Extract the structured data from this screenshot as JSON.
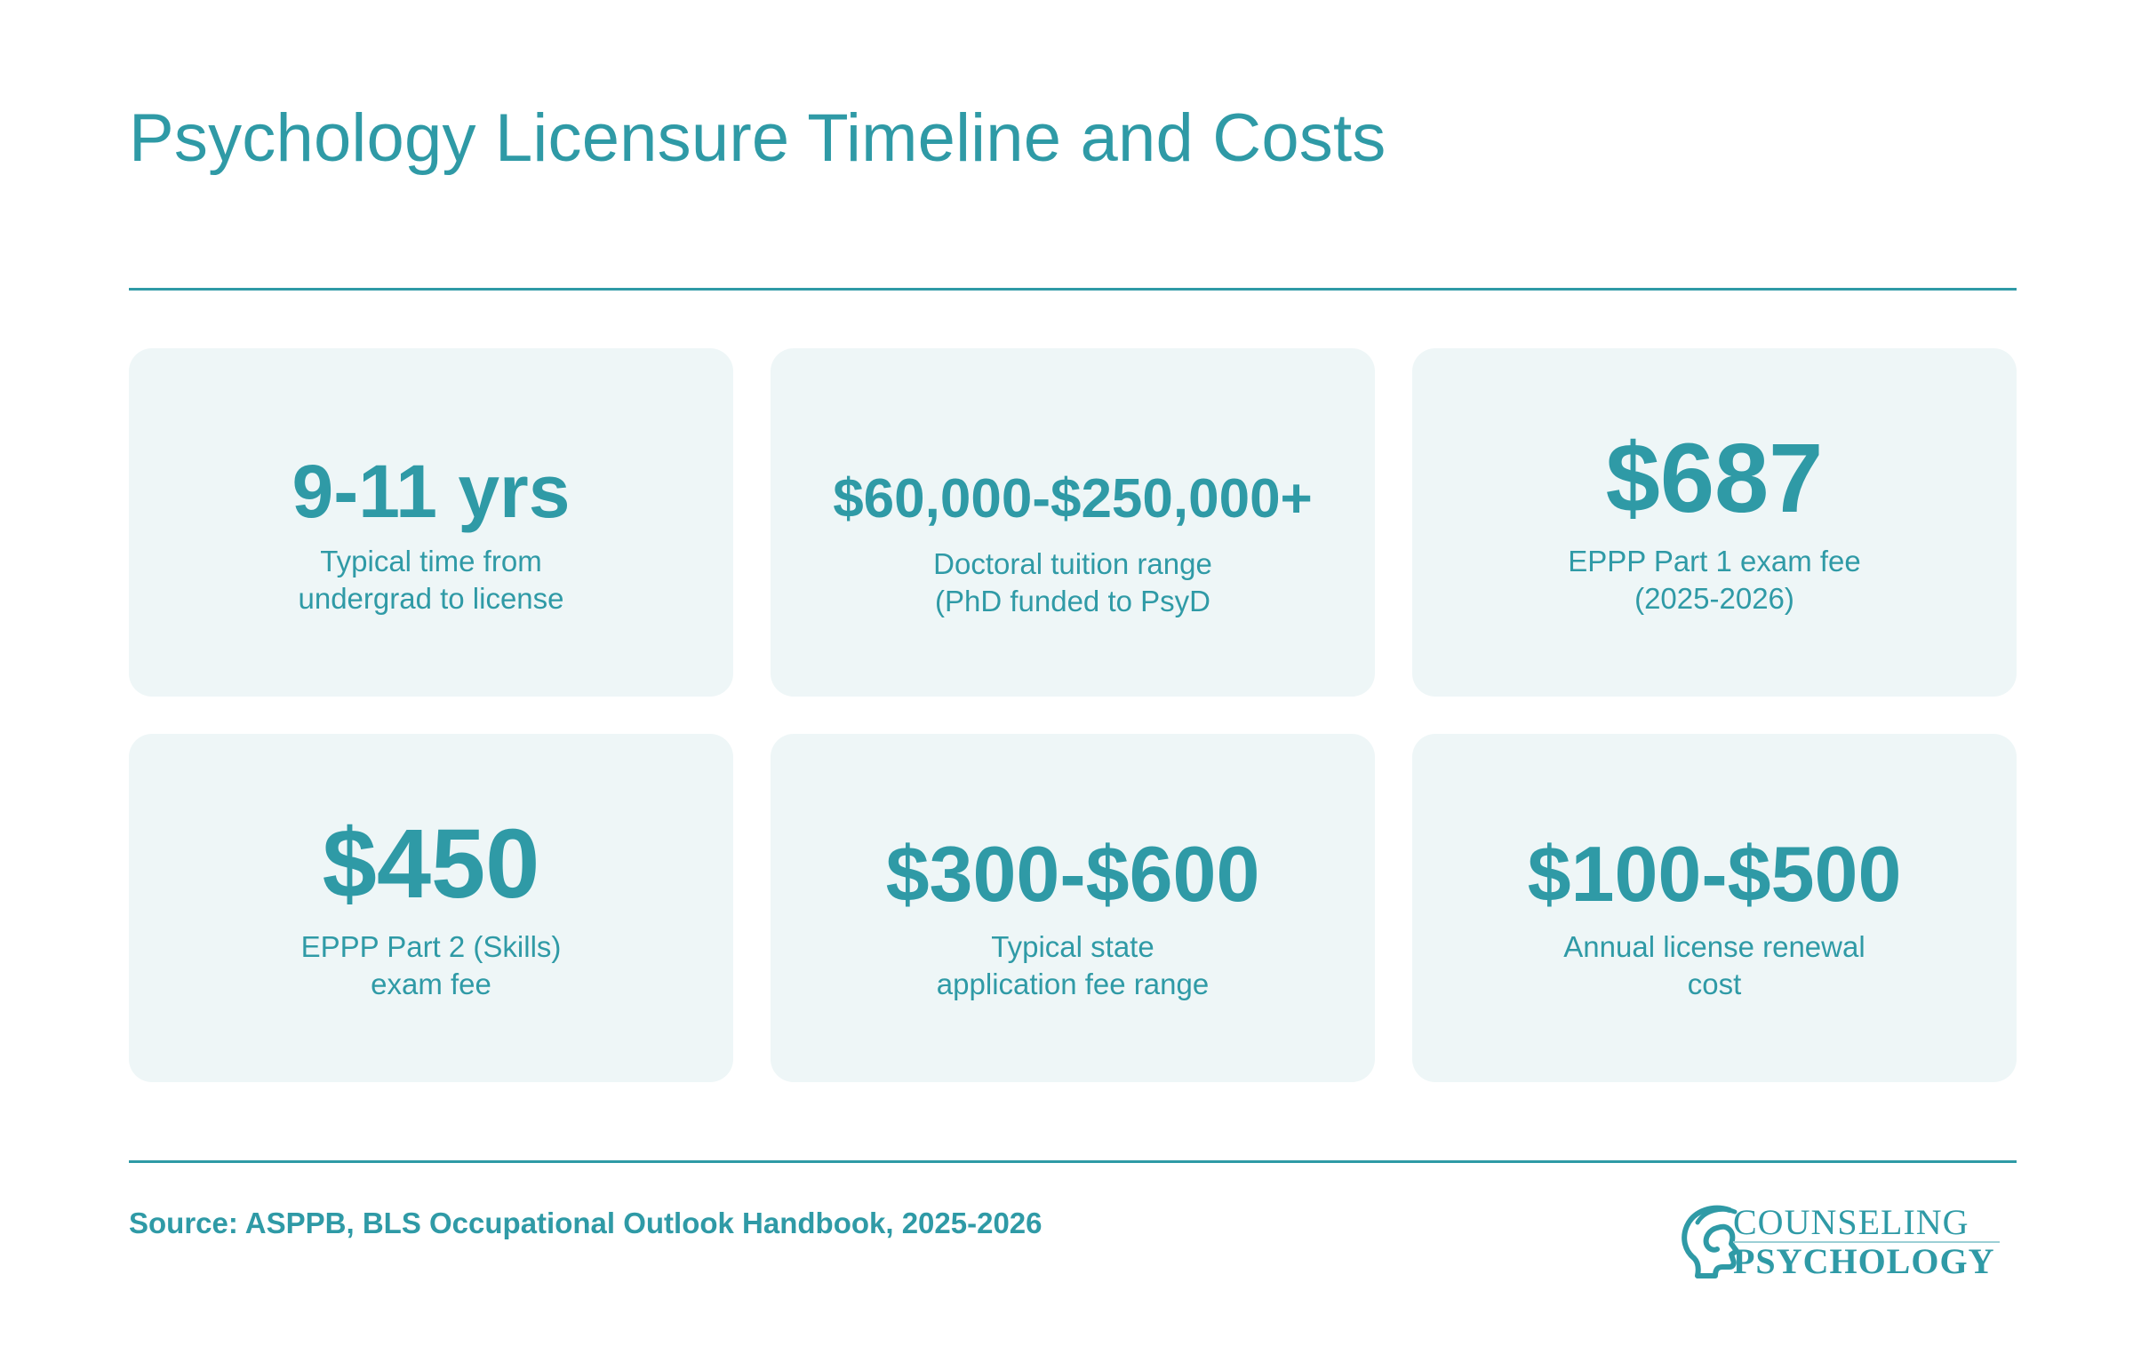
{
  "title": "Psychology Licensure Timeline and Costs",
  "stats": [
    {
      "value": "9-11 yrs",
      "label": "Typical time from\nundergrad to license"
    },
    {
      "value": "$60,000-$250,000+",
      "label": "Doctoral tuition range\n(PhD funded to PsyD"
    },
    {
      "value": "$687",
      "label": "EPPP Part 1 exam fee\n(2025-2026)"
    },
    {
      "value": "$450",
      "label": "EPPP Part 2 (Skills)\nexam fee"
    },
    {
      "value": "$300-$600",
      "label": "Typical state\napplication fee range"
    },
    {
      "value": "$100-$500",
      "label": "Annual license renewal\ncost"
    }
  ],
  "source": "Source: ASPPB, BLS Occupational Outlook Handbook, 2025-2026",
  "logo": {
    "line1": "COUNSELING",
    "line2": "PSYCHOLOGY",
    "icon": "head-profile-icon"
  },
  "colors": {
    "accent": "#2f9aa6",
    "card_background": "#eef6f7",
    "background": "#ffffff"
  }
}
